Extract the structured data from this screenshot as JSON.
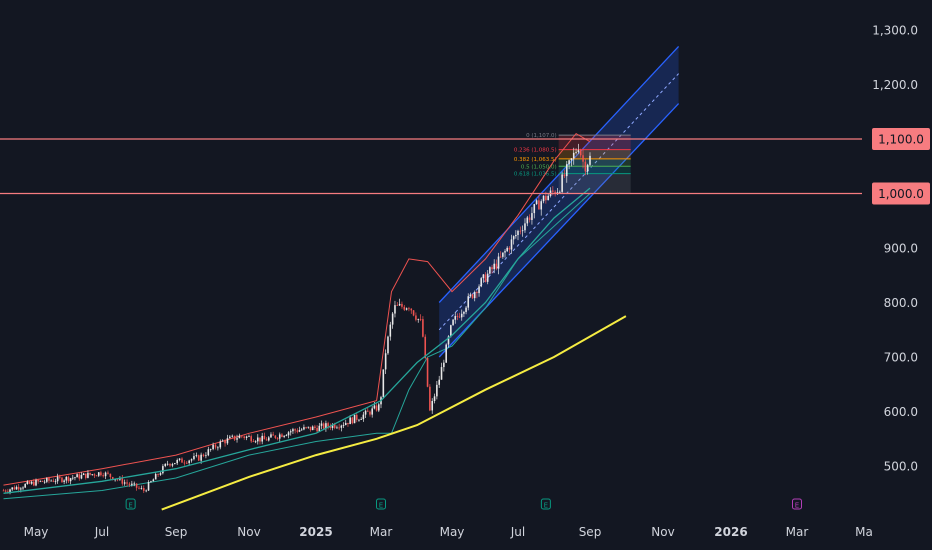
{
  "chart_data": {
    "type": "candlestick",
    "y_axis": {
      "position": "right",
      "range": [
        420,
        1330
      ],
      "ticks": [
        "1,300.0",
        "1,200.0",
        "1,100.0",
        "1,000.0",
        "900.0",
        "800.0",
        "700.0",
        "600.0",
        "500.0"
      ],
      "tick_values": [
        1300,
        1200,
        1100,
        1000,
        900,
        800,
        700,
        600,
        500
      ]
    },
    "x_axis": {
      "ticks": [
        {
          "label": "May",
          "date": "2024-05-01"
        },
        {
          "label": "Jul",
          "date": "2024-07-01"
        },
        {
          "label": "Sep",
          "date": "2024-09-01"
        },
        {
          "label": "Nov",
          "date": "2024-11-01"
        },
        {
          "label": "2025",
          "date": "2025-01-01",
          "bold": true
        },
        {
          "label": "Mar",
          "date": "2025-03-01"
        },
        {
          "label": "May",
          "date": "2025-05-01"
        },
        {
          "label": "Jul",
          "date": "2025-07-01"
        },
        {
          "label": "Sep",
          "date": "2025-09-01"
        },
        {
          "label": "Nov",
          "date": "2025-11-01"
        },
        {
          "label": "2026",
          "date": "2026-01-01",
          "bold": true
        },
        {
          "label": "Mar",
          "date": "2026-03-01"
        },
        {
          "label": "Ma",
          "date": "2026-05-01"
        }
      ]
    },
    "price_path": [
      [
        "2024-04-01",
        455
      ],
      [
        "2024-05-01",
        470
      ],
      [
        "2024-06-01",
        478
      ],
      [
        "2024-07-01",
        488
      ],
      [
        "2024-07-20",
        470
      ],
      [
        "2024-08-05",
        455
      ],
      [
        "2024-08-25",
        505
      ],
      [
        "2024-09-20",
        515
      ],
      [
        "2024-10-10",
        545
      ],
      [
        "2024-10-25",
        555
      ],
      [
        "2024-11-15",
        548
      ],
      [
        "2024-12-10",
        565
      ],
      [
        "2025-01-01",
        570
      ],
      [
        "2025-01-25",
        578
      ],
      [
        "2025-02-15",
        595
      ],
      [
        "2025-02-28",
        610
      ],
      [
        "2025-03-05",
        710
      ],
      [
        "2025-03-12",
        790
      ],
      [
        "2025-03-25",
        795
      ],
      [
        "2025-04-05",
        760
      ],
      [
        "2025-04-12",
        600
      ],
      [
        "2025-04-20",
        660
      ],
      [
        "2025-05-01",
        760
      ],
      [
        "2025-05-25",
        830
      ],
      [
        "2025-06-15",
        880
      ],
      [
        "2025-07-01",
        930
      ],
      [
        "2025-07-20",
        985
      ],
      [
        "2025-08-05",
        1010
      ],
      [
        "2025-08-15",
        1055
      ],
      [
        "2025-08-22",
        1090
      ],
      [
        "2025-08-27",
        1050
      ],
      [
        "2025-09-01",
        1065
      ]
    ],
    "indicators": [
      {
        "name": "moving average (long)",
        "color": "#f5ec42",
        "points": [
          [
            "2024-08-20",
            420
          ],
          [
            "2024-11-01",
            480
          ],
          [
            "2025-01-01",
            520
          ],
          [
            "2025-02-25",
            550
          ],
          [
            "2025-04-01",
            575
          ],
          [
            "2025-06-01",
            640
          ],
          [
            "2025-08-01",
            700
          ],
          [
            "2025-10-01",
            775
          ]
        ]
      },
      {
        "name": "moving average (mid)",
        "color": "#26a69a",
        "points": [
          [
            "2024-04-01",
            450
          ],
          [
            "2024-07-01",
            472
          ],
          [
            "2024-09-01",
            495
          ],
          [
            "2024-11-01",
            530
          ],
          [
            "2025-01-01",
            560
          ],
          [
            "2025-03-01",
            620
          ],
          [
            "2025-04-01",
            690
          ],
          [
            "2025-05-01",
            740
          ],
          [
            "2025-06-01",
            800
          ],
          [
            "2025-07-01",
            880
          ],
          [
            "2025-08-01",
            955
          ],
          [
            "2025-09-01",
            1010
          ]
        ]
      },
      {
        "name": "upper band",
        "color": "#ef5350",
        "points": [
          [
            "2024-04-01",
            465
          ],
          [
            "2024-07-01",
            495
          ],
          [
            "2024-09-01",
            520
          ],
          [
            "2024-11-01",
            560
          ],
          [
            "2025-01-01",
            590
          ],
          [
            "2025-02-25",
            620
          ],
          [
            "2025-03-10",
            820
          ],
          [
            "2025-03-25",
            880
          ],
          [
            "2025-04-10",
            875
          ],
          [
            "2025-05-01",
            820
          ],
          [
            "2025-06-01",
            880
          ],
          [
            "2025-07-01",
            960
          ],
          [
            "2025-08-01",
            1060
          ],
          [
            "2025-08-20",
            1110
          ],
          [
            "2025-09-01",
            1095
          ]
        ]
      },
      {
        "name": "lower band",
        "color": "#26a69a",
        "points": [
          [
            "2024-04-01",
            440
          ],
          [
            "2024-07-01",
            455
          ],
          [
            "2024-09-01",
            478
          ],
          [
            "2024-11-01",
            520
          ],
          [
            "2025-01-01",
            545
          ],
          [
            "2025-02-25",
            560
          ],
          [
            "2025-03-10",
            560
          ],
          [
            "2025-03-25",
            640
          ],
          [
            "2025-04-10",
            700
          ],
          [
            "2025-05-01",
            720
          ],
          [
            "2025-06-01",
            790
          ],
          [
            "2025-07-01",
            880
          ],
          [
            "2025-08-01",
            940
          ],
          [
            "2025-09-01",
            1000
          ]
        ]
      }
    ],
    "regression_channel": {
      "upper": [
        [
          "2025-04-20",
          800
        ],
        [
          "2025-11-15",
          1270
        ]
      ],
      "mid": [
        [
          "2025-04-20",
          750
        ],
        [
          "2025-11-15",
          1220
        ]
      ],
      "lower": [
        [
          "2025-04-20",
          700
        ],
        [
          "2025-11-15",
          1165
        ]
      ]
    },
    "horizontal_levels": [
      {
        "value": 1100,
        "label": "1,100.0",
        "color": "#f77c80"
      },
      {
        "value": 1000,
        "label": "1,000.0",
        "color": "#f77c80"
      }
    ],
    "fibonacci": {
      "start": "2025-08-05",
      "end": "2025-10-05",
      "levels": [
        {
          "label": "0 (1,107.0)",
          "value": 1107,
          "color": "#787b86"
        },
        {
          "label": "0.236 (1,080.5)",
          "value": 1080.5,
          "color": "#f23645"
        },
        {
          "label": "0.382 (1,063.5)",
          "value": 1063.5,
          "color": "#ff9800"
        },
        {
          "label": "0.5 (1,050.0)",
          "value": 1050,
          "color": "#4caf50"
        },
        {
          "label": "0.618 (1,036.5)",
          "value": 1036.5,
          "color": "#089981"
        },
        {
          "label": "",
          "value": 1000,
          "color": "#787b86"
        }
      ]
    },
    "event_markers": [
      {
        "date": "2024-07-25",
        "text": "E",
        "color": "#089981"
      },
      {
        "date": "2025-03-01",
        "text": "E",
        "color": "#089981"
      },
      {
        "date": "2025-07-25",
        "text": "E",
        "color": "#089981"
      },
      {
        "date": "2026-03-01",
        "text": "E",
        "color": "#b33fb8"
      }
    ],
    "colors": {
      "background": "#131722",
      "up": "#e8e8e8",
      "down": "#ef5350",
      "channel": "#2962ff"
    }
  }
}
